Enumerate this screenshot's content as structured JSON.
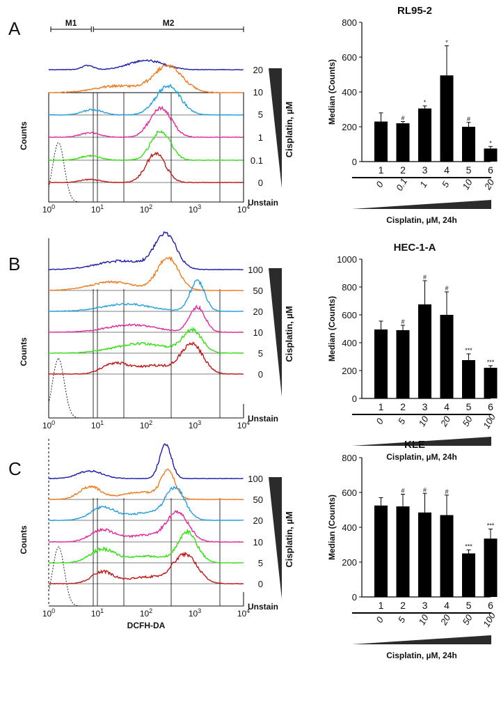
{
  "figure": {
    "panels": [
      {
        "letter": "A",
        "cell_line": "RL95-2",
        "histogram": {
          "ylabel": "Counts",
          "xticks": [
            "10^0",
            "10^1",
            "10^2",
            "10^3",
            "10^4"
          ],
          "gate_markers": [
            {
              "label": "M1",
              "range": [
                1,
                7.5
              ]
            },
            {
              "label": "M2",
              "range": [
                7.5,
                10000
              ]
            }
          ],
          "trace_labels": [
            "20",
            "10",
            "5",
            "1",
            "0.1",
            "0"
          ],
          "unstain_label": "Unstain",
          "dose_label": "Cisplatin, µM",
          "xlabel": ""
        }
      },
      {
        "letter": "B",
        "cell_line": "HEC-1-A",
        "histogram": {
          "ylabel": "Counts",
          "xticks": [
            "10^0",
            "10^1",
            "10^2",
            "10^3",
            "10^4"
          ],
          "trace_labels": [
            "100",
            "50",
            "20",
            "10",
            "5",
            "0"
          ],
          "unstain_label": "Unstain",
          "dose_label": "Cisplatin, µM",
          "xlabel": ""
        }
      },
      {
        "letter": "C",
        "cell_line": "KLE",
        "histogram": {
          "ylabel": "Counts",
          "xticks": [
            "10^0",
            "10^1",
            "10^2",
            "10^3",
            "10^4"
          ],
          "trace_labels": [
            "100",
            "50",
            "20",
            "10",
            "5",
            "0"
          ],
          "unstain_label": "Unstain",
          "dose_label": "Cisplatin, µM",
          "xlabel": "DCFH-DA"
        }
      }
    ],
    "trace_colors": [
      "#1a1aa8",
      "#f07b1e",
      "#1f9fe0",
      "#e3289b",
      "#35e012",
      "#c01515"
    ]
  },
  "chart_data": [
    {
      "type": "bar",
      "title": "RL95-2",
      "ylabel": "Median (Counts)",
      "xlabel": "Cisplatin, µM, 24h",
      "categories": [
        "1",
        "2",
        "3",
        "4",
        "5",
        "6"
      ],
      "doses": [
        "0",
        "0.1",
        "1",
        "5",
        "10",
        "20"
      ],
      "values": [
        230,
        220,
        305,
        495,
        200,
        75
      ],
      "errors": [
        50,
        10,
        15,
        170,
        25,
        12
      ],
      "significance": [
        "",
        "#",
        "*",
        "*",
        "#",
        "*"
      ],
      "ylim": [
        0,
        800
      ],
      "yticks": [
        0,
        200,
        400,
        600,
        800
      ]
    },
    {
      "type": "bar",
      "title": "HEC-1-A",
      "ylabel": "Median (Counts)",
      "xlabel": "Cisplatin, µM, 24h",
      "categories": [
        "1",
        "2",
        "3",
        "4",
        "5",
        "6"
      ],
      "doses": [
        "0",
        "5",
        "10",
        "20",
        "50",
        "100"
      ],
      "values": [
        495,
        490,
        675,
        600,
        275,
        220
      ],
      "errors": [
        60,
        35,
        170,
        165,
        45,
        15
      ],
      "significance": [
        "",
        "#",
        "#",
        "#",
        "***",
        "***"
      ],
      "ylim": [
        0,
        1000
      ],
      "yticks": [
        0,
        200,
        400,
        600,
        800,
        1000
      ]
    },
    {
      "type": "bar",
      "title": "KLE",
      "ylabel": "Median (Counts)",
      "xlabel": "Cisplatin, µM, 24h",
      "categories": [
        "1",
        "2",
        "3",
        "4",
        "5",
        "6"
      ],
      "doses": [
        "0",
        "5",
        "10",
        "20",
        "50",
        "100"
      ],
      "values": [
        525,
        520,
        485,
        470,
        250,
        335
      ],
      "errors": [
        45,
        70,
        110,
        115,
        20,
        55
      ],
      "significance": [
        "",
        "#",
        "#",
        "#",
        "***",
        "***"
      ],
      "ylim": [
        0,
        800
      ],
      "yticks": [
        0,
        200,
        400,
        600,
        800
      ]
    }
  ]
}
